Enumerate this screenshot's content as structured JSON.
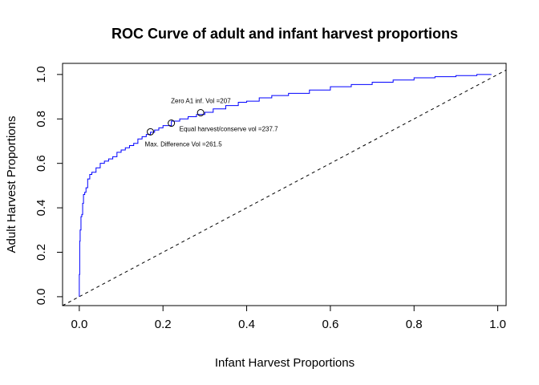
{
  "chart_data": {
    "type": "line",
    "title": "ROC Curve of adult and infant harvest proportions",
    "xlabel": "Infant Harvest Proportions",
    "ylabel": "Adult Harvest Proportions",
    "xlim": [
      -0.04,
      1.02
    ],
    "ylim": [
      -0.04,
      1.05
    ],
    "x_ticks": [
      0.0,
      0.2,
      0.4,
      0.6,
      0.8,
      1.0
    ],
    "y_ticks": [
      0.0,
      0.2,
      0.4,
      0.6,
      0.8,
      1.0
    ],
    "x_tick_labels": [
      "0.0",
      "0.2",
      "0.4",
      "0.6",
      "0.8",
      "1.0"
    ],
    "y_tick_labels": [
      "0.0",
      "0.2",
      "0.4",
      "0.6",
      "0.8",
      "1.0"
    ],
    "grid": false,
    "series": [
      {
        "color": "#0000ff",
        "x": [
          0.0,
          0.0,
          0.001,
          0.002,
          0.004,
          0.006,
          0.008,
          0.01,
          0.013,
          0.016,
          0.02,
          0.025,
          0.03,
          0.04,
          0.05,
          0.06,
          0.07,
          0.08,
          0.09,
          0.1,
          0.11,
          0.12,
          0.13,
          0.14,
          0.15,
          0.16,
          0.17,
          0.18,
          0.19,
          0.2,
          0.22,
          0.24,
          0.26,
          0.28,
          0.3,
          0.32,
          0.35,
          0.38,
          0.4,
          0.43,
          0.46,
          0.5,
          0.55,
          0.6,
          0.65,
          0.7,
          0.75,
          0.8,
          0.85,
          0.9,
          0.95,
          0.985
        ],
        "y": [
          0.0,
          0.1,
          0.25,
          0.3,
          0.36,
          0.37,
          0.42,
          0.46,
          0.47,
          0.49,
          0.53,
          0.55,
          0.56,
          0.58,
          0.6,
          0.61,
          0.62,
          0.63,
          0.65,
          0.66,
          0.67,
          0.68,
          0.69,
          0.71,
          0.72,
          0.73,
          0.74,
          0.75,
          0.76,
          0.77,
          0.79,
          0.8,
          0.81,
          0.82,
          0.83,
          0.845,
          0.86,
          0.875,
          0.88,
          0.895,
          0.905,
          0.915,
          0.93,
          0.945,
          0.955,
          0.965,
          0.975,
          0.985,
          0.99,
          0.995,
          1.0,
          1.0
        ]
      }
    ],
    "reference_line": {
      "x": [
        -0.04,
        1.02
      ],
      "y": [
        -0.04,
        1.02
      ]
    },
    "highlight_points": [
      {
        "x": 0.17,
        "y": 0.742,
        "label": "Max. Difference Vol =261.5"
      },
      {
        "x": 0.22,
        "y": 0.781,
        "label": "Equal harvest/conserve vol =237.7"
      },
      {
        "x": 0.29,
        "y": 0.828,
        "label": "Zero A1 inf. Vol =207"
      }
    ]
  }
}
